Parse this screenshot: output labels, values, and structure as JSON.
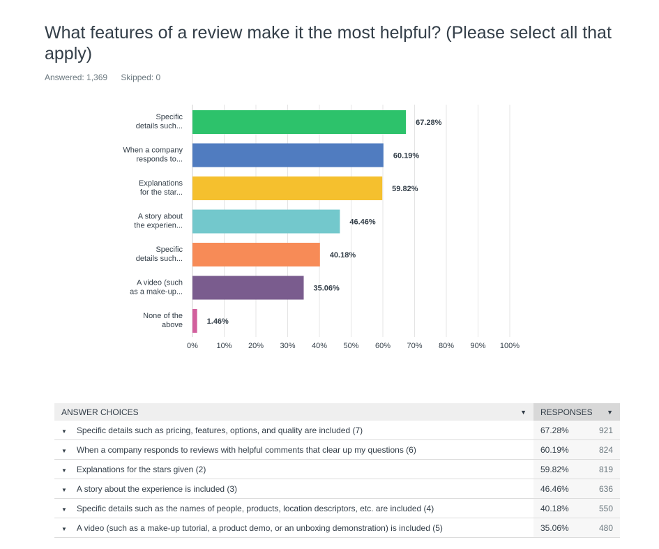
{
  "question": {
    "title": "What features of a review make it the most helpful? (Please select all that apply)",
    "answered": "Answered: 1,369",
    "skipped": "Skipped: 0"
  },
  "chart_data": {
    "type": "bar",
    "orientation": "horizontal",
    "categories": [
      [
        "Specific",
        "details such..."
      ],
      [
        "When a company",
        "responds to..."
      ],
      [
        "Explanations",
        "for the star..."
      ],
      [
        "A story about",
        "the experien..."
      ],
      [
        "Specific",
        "details such..."
      ],
      [
        "A video (such",
        "as a make-up..."
      ],
      [
        "None of the",
        "above"
      ]
    ],
    "values": [
      67.28,
      60.19,
      59.82,
      46.46,
      40.18,
      35.06,
      1.46
    ],
    "data_labels": [
      "67.28%",
      "60.19%",
      "59.82%",
      "46.46%",
      "40.18%",
      "35.06%",
      "1.46%"
    ],
    "colors": [
      "#2dc26b",
      "#507cc0",
      "#f5c02e",
      "#73c8cc",
      "#f78b57",
      "#7a5c8e",
      "#d25f9d"
    ],
    "xlim": [
      0,
      100
    ],
    "x_ticks": [
      "0%",
      "10%",
      "20%",
      "30%",
      "40%",
      "50%",
      "60%",
      "70%",
      "80%",
      "90%",
      "100%"
    ],
    "grid": true,
    "title": "",
    "xlabel": "",
    "ylabel": ""
  },
  "table": {
    "headers": {
      "choices": "ANSWER CHOICES",
      "responses": "RESPONSES"
    },
    "rows": [
      {
        "choice": "Specific details such as pricing, features, options, and quality are included (7)",
        "pct": "67.28%",
        "count": "921"
      },
      {
        "choice": "When a company responds to reviews with helpful comments that clear up my questions (6)",
        "pct": "60.19%",
        "count": "824"
      },
      {
        "choice": "Explanations for the stars given (2)",
        "pct": "59.82%",
        "count": "819"
      },
      {
        "choice": "A story about the experience is included (3)",
        "pct": "46.46%",
        "count": "636"
      },
      {
        "choice": "Specific details such as the names of people, products, location descriptors, etc. are included (4)",
        "pct": "40.18%",
        "count": "550"
      },
      {
        "choice": "A video (such as a make-up tutorial, a product demo, or an unboxing demonstration) is included (5)",
        "pct": "35.06%",
        "count": "480"
      }
    ]
  }
}
